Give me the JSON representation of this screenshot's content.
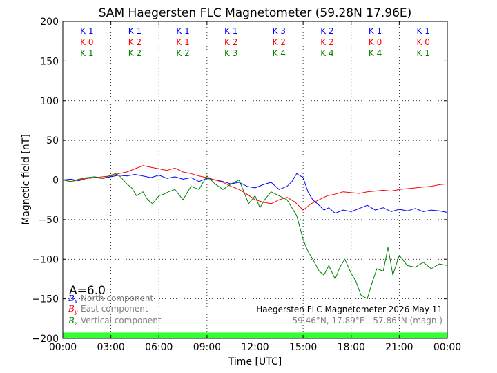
{
  "chart_data": {
    "type": "line",
    "title": "SAM Haegersten FLC Magnetometer (59.28N 17.96E)",
    "xlabel": "Time [UTC]",
    "ylabel": "Magnetic field [nT]",
    "xlim": [
      0,
      24
    ],
    "ylim": [
      -200,
      200
    ],
    "x_ticks": [
      0,
      3,
      6,
      9,
      12,
      15,
      18,
      21,
      24
    ],
    "x_tick_labels": [
      "00:00",
      "03:00",
      "06:00",
      "09:00",
      "12:00",
      "15:00",
      "18:00",
      "21:00",
      "00:00"
    ],
    "y_ticks": [
      -200,
      -150,
      -100,
      -50,
      0,
      50,
      100,
      150,
      200
    ],
    "y_tick_labels": [
      "−200",
      "−150",
      "−100",
      "−50",
      "0",
      "50",
      "100",
      "150",
      "200"
    ],
    "grid": true,
    "k_indices": {
      "x_centers": [
        1.5,
        4.5,
        7.5,
        10.5,
        13.5,
        16.5,
        19.5,
        22.5
      ],
      "rows": [
        {
          "color": "#0000ff",
          "labels": [
            "K 1",
            "K 1",
            "K 1",
            "K 1",
            "K 3",
            "K 2",
            "K 1",
            "K 1"
          ]
        },
        {
          "color": "#ff0000",
          "labels": [
            "K 0",
            "K 2",
            "K 1",
            "K 2",
            "K 2",
            "K 2",
            "K 0",
            "K 0"
          ]
        },
        {
          "color": "#008000",
          "labels": [
            "K 1",
            "K 2",
            "K 2",
            "K 3",
            "K 4",
            "K 4",
            "K 4",
            "K 1"
          ]
        }
      ]
    },
    "a_index": "A=6.0",
    "legend": {
      "placement": "lower-left",
      "items": [
        {
          "symbol": "B",
          "sub": "x",
          "label": "North component",
          "color": "#0000ff"
        },
        {
          "symbol": "B",
          "sub": "y",
          "label": "East component",
          "color": "#ff0000"
        },
        {
          "symbol": "B",
          "sub": "z",
          "label": "Vertical component",
          "color": "#008000"
        }
      ]
    },
    "annotation": {
      "line1": "Haegersten FLC Magnetometer 2026 May 11",
      "line2": "59.46°N, 17.89°E - 57.86°N (magn.)"
    },
    "status_bar_color": "#33ff33",
    "series": [
      {
        "color": "#0000ff",
        "x": [
          0,
          0.5,
          1,
          1.5,
          2,
          2.5,
          3,
          3.5,
          4,
          4.5,
          5,
          5.5,
          6,
          6.5,
          7,
          7.5,
          8,
          8.5,
          9,
          9.5,
          10,
          10.5,
          11,
          11.5,
          12,
          12.5,
          13,
          13.5,
          14,
          14.3,
          14.6,
          15,
          15.3,
          15.6,
          16,
          16.3,
          16.6,
          17,
          17.5,
          18,
          18.5,
          19,
          19.5,
          20,
          20.5,
          21,
          21.5,
          22,
          22.5,
          23,
          23.5,
          24
        ],
        "y": [
          0,
          1,
          -1,
          2,
          3,
          2,
          4,
          6,
          5,
          7,
          5,
          3,
          6,
          2,
          4,
          1,
          3,
          -2,
          2,
          0,
          -2,
          -5,
          -3,
          -8,
          -10,
          -6,
          -3,
          -12,
          -8,
          -2,
          8,
          3,
          -15,
          -25,
          -32,
          -38,
          -35,
          -42,
          -38,
          -40,
          -36,
          -32,
          -38,
          -35,
          -40,
          -37,
          -39,
          -36,
          -40,
          -38,
          -39,
          -41
        ]
      },
      {
        "color": "#ff0000",
        "x": [
          0,
          0.5,
          1,
          1.5,
          2,
          2.5,
          3,
          3.5,
          4,
          4.5,
          5,
          5.5,
          6,
          6.5,
          7,
          7.5,
          8,
          8.5,
          9,
          9.5,
          10,
          10.5,
          11,
          11.5,
          12,
          12.5,
          13,
          13.5,
          14,
          14.5,
          15,
          15.5,
          16,
          16.5,
          17,
          17.5,
          18,
          18.5,
          19,
          19.5,
          20,
          20.5,
          21,
          21.5,
          22,
          22.5,
          23,
          23.5,
          24
        ],
        "y": [
          0,
          -2,
          0,
          2,
          3,
          4,
          5,
          8,
          10,
          14,
          18,
          16,
          14,
          12,
          15,
          10,
          8,
          5,
          3,
          0,
          -3,
          -8,
          -12,
          -18,
          -25,
          -28,
          -30,
          -25,
          -22,
          -28,
          -38,
          -30,
          -25,
          -20,
          -18,
          -15,
          -16,
          -17,
          -15,
          -14,
          -13,
          -14,
          -12,
          -11,
          -10,
          -9,
          -8,
          -6,
          -5
        ]
      },
      {
        "color": "#008000",
        "x": [
          0,
          0.5,
          1,
          1.5,
          2,
          2.5,
          3,
          3.3,
          3.6,
          4,
          4.3,
          4.6,
          5,
          5.3,
          5.6,
          6,
          6.3,
          6.6,
          7,
          7.5,
          8,
          8.5,
          9,
          9.5,
          10,
          10.5,
          11,
          11.3,
          11.6,
          12,
          12.3,
          12.6,
          13,
          13.5,
          14,
          14.3,
          14.6,
          15,
          15.3,
          15.6,
          16,
          16.3,
          16.6,
          17,
          17.3,
          17.6,
          18,
          18.3,
          18.6,
          19,
          19.3,
          19.6,
          20,
          20.3,
          20.6,
          21,
          21.5,
          22,
          22.5,
          23,
          23.5,
          24
        ],
        "y": [
          0,
          -2,
          1,
          3,
          4,
          2,
          6,
          8,
          4,
          -5,
          -10,
          -20,
          -15,
          -25,
          -30,
          -20,
          -18,
          -15,
          -12,
          -25,
          -8,
          -12,
          5,
          -5,
          -12,
          -5,
          0,
          -15,
          -30,
          -20,
          -35,
          -25,
          -15,
          -20,
          -25,
          -35,
          -45,
          -75,
          -90,
          -100,
          -115,
          -120,
          -108,
          -125,
          -110,
          -100,
          -118,
          -128,
          -145,
          -150,
          -130,
          -112,
          -115,
          -85,
          -120,
          -95,
          -108,
          -110,
          -104,
          -112,
          -106,
          -108
        ]
      }
    ]
  }
}
